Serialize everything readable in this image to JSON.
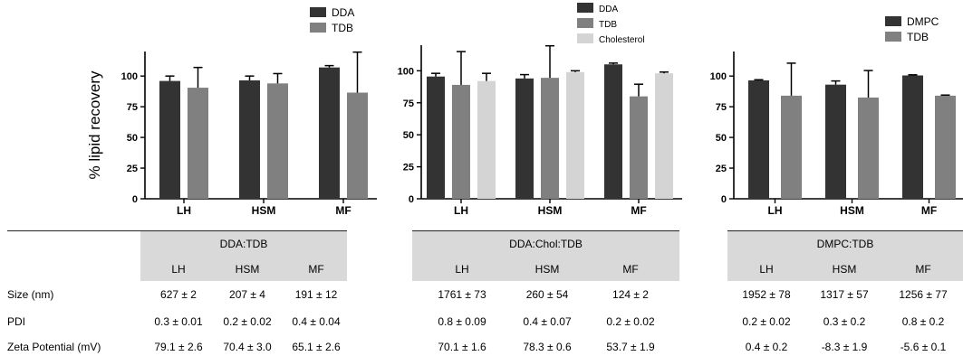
{
  "colors": {
    "dark": "#333333",
    "mid": "#808080",
    "light": "#d4d4d4"
  },
  "chart_data": [
    {
      "type": "bar",
      "ylabel": "% lipid recovery",
      "ylim": [
        0,
        120
      ],
      "yticks": [
        0,
        25,
        50,
        75,
        100
      ],
      "categories": [
        "LH",
        "HSM",
        "MF"
      ],
      "legend_position": "top-right",
      "series": [
        {
          "name": "DDA",
          "values": [
            96,
            96.5,
            107
          ],
          "errors": [
            4,
            3.5,
            1.5
          ]
        },
        {
          "name": "TDB",
          "values": [
            90.5,
            94,
            86.5
          ],
          "errors": [
            16.5,
            8,
            33
          ]
        }
      ]
    },
    {
      "type": "bar",
      "ylabel": "",
      "ylim": [
        0,
        120
      ],
      "yticks": [
        0,
        25,
        50,
        75,
        100
      ],
      "categories": [
        "LH",
        "HSM",
        "MF"
      ],
      "legend_position": "top-right",
      "series": [
        {
          "name": "DDA",
          "values": [
            95.5,
            94,
            105
          ],
          "errors": [
            2.5,
            3,
            1
          ]
        },
        {
          "name": "TDB",
          "values": [
            89,
            94.5,
            80
          ],
          "errors": [
            26,
            25,
            9.5
          ]
        },
        {
          "name": "Cholesterol",
          "values": [
            92,
            99,
            98
          ],
          "errors": [
            6,
            1,
            1
          ]
        }
      ]
    },
    {
      "type": "bar",
      "ylabel": "",
      "ylim": [
        0,
        120
      ],
      "yticks": [
        0,
        25,
        50,
        75,
        100
      ],
      "categories": [
        "LH",
        "HSM",
        "MF"
      ],
      "legend_position": "top-right",
      "series": [
        {
          "name": "DMPC",
          "values": [
            96.5,
            93,
            100.5
          ],
          "errors": [
            0.5,
            3,
            0.5
          ]
        },
        {
          "name": "TDB",
          "values": [
            84,
            82.5,
            84
          ],
          "errors": [
            26.5,
            22,
            0.5
          ]
        }
      ]
    }
  ],
  "table": {
    "row_labels": [
      "Size (nm)",
      "PDI",
      "Zeta Potential (mV)"
    ],
    "groups": [
      {
        "title": "DDA:TDB",
        "columns": [
          "LH",
          "HSM",
          "MF"
        ],
        "rows": [
          [
            "627 ± 2",
            "207 ± 4",
            "191 ± 12"
          ],
          [
            "0.3 ± 0.01",
            "0.2 ± 0.02",
            "0.4 ± 0.04"
          ],
          [
            "79.1 ± 2.6",
            "70.4 ± 3.0",
            "65.1 ± 2.6"
          ]
        ]
      },
      {
        "title": "DDA:Chol:TDB",
        "columns": [
          "LH",
          "HSM",
          "MF"
        ],
        "rows": [
          [
            "1761 ± 73",
            "260 ± 54",
            "124 ± 2"
          ],
          [
            "0.8 ± 0.09",
            "0.4 ± 0.07",
            "0.2 ± 0.02"
          ],
          [
            "70.1 ± 1.6",
            "78.3 ± 0.6",
            "53.7 ± 1.9"
          ]
        ]
      },
      {
        "title": "DMPC:TDB",
        "columns": [
          "LH",
          "HSM",
          "MF"
        ],
        "rows": [
          [
            "1952 ± 78",
            "1317 ± 57",
            "1256 ± 77"
          ],
          [
            "0.2 ± 0.02",
            "0.3 ± 0.2",
            "0.8 ± 0.2"
          ],
          [
            "0.4 ± 0.2",
            "-8.3 ± 1.9",
            "-5.6 ± 0.1"
          ]
        ]
      }
    ]
  }
}
